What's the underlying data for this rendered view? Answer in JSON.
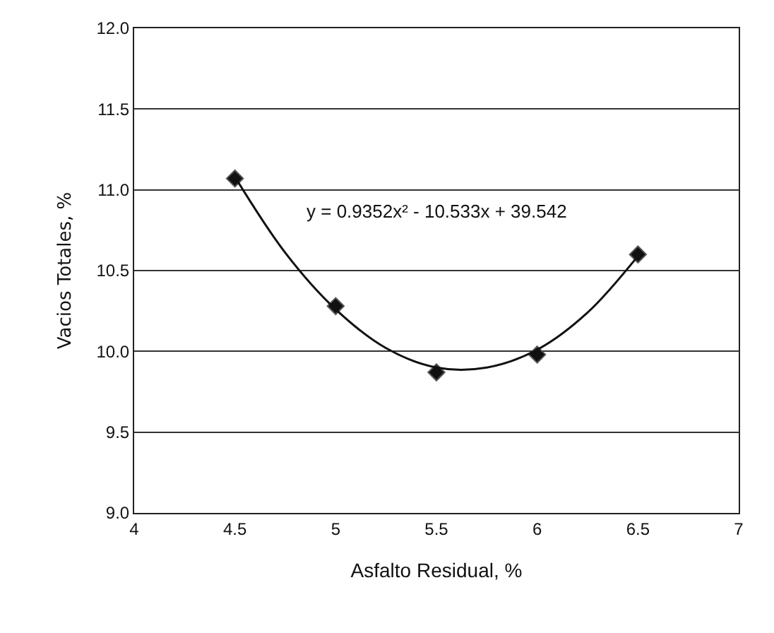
{
  "chart_data": {
    "type": "scatter",
    "xlabel": "Asfalto Residual, %",
    "ylabel": "Vacios Totales, %",
    "x": [
      4.5,
      5,
      5.5,
      6,
      6.5
    ],
    "series": [
      {
        "color": "#111111",
        "marker": "diamond",
        "values": [
          11.07,
          10.28,
          9.87,
          9.98,
          10.6
        ]
      },
      {
        "type": "line",
        "color": "#111111",
        "marker": "none",
        "x": [
          4.5,
          4.75,
          5,
          5.25,
          5.5,
          5.75,
          6,
          6.25,
          6.5
        ],
        "values": [
          11.08,
          10.61,
          10.26,
          10.02,
          9.9,
          9.9,
          10.01,
          10.24,
          10.59
        ]
      }
    ],
    "annotations": [
      "y = 0.9352x² - 10.533x + 39.542"
    ],
    "xlim": [
      4,
      7
    ],
    "xticks": [
      4,
      4.5,
      5,
      5.5,
      6,
      6.5,
      7
    ],
    "ylim": [
      9,
      12
    ],
    "yticks": [
      {
        "value": 9,
        "label": "9.0"
      },
      {
        "value": 9.5,
        "label": "9.5"
      },
      {
        "value": 10,
        "label": "10.0"
      },
      {
        "value": 10.5,
        "label": "10.5"
      },
      {
        "value": 11,
        "label": "11.0"
      },
      {
        "value": 11.5,
        "label": "11.5"
      },
      {
        "value": 12,
        "label": "12.0"
      }
    ],
    "grid": "y"
  }
}
